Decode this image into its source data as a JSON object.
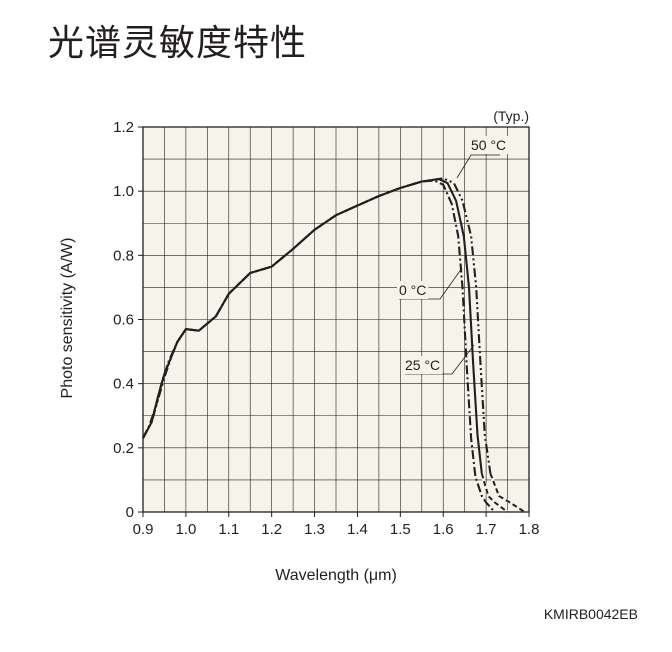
{
  "page": {
    "title": "光谱灵敏度特性",
    "figure_code": "KMIRB0042EB"
  },
  "chart_data": {
    "type": "line",
    "note": "(Typ.)",
    "xlabel": "Wavelength (μm)",
    "ylabel": "Photo sensitivity (A/W)",
    "xlim": [
      0.9,
      1.8
    ],
    "ylim": [
      0,
      1.2
    ],
    "x_ticks": [
      "0.9",
      "1.0",
      "1.1",
      "1.2",
      "1.3",
      "1.4",
      "1.5",
      "1.6",
      "1.7",
      "1.8"
    ],
    "y_ticks": [
      "0",
      "0.2",
      "0.4",
      "0.6",
      "0.8",
      "1.0",
      "1.2"
    ],
    "grid": true,
    "background": "#f4f4ea",
    "series": [
      {
        "name": "0 °C",
        "style": "dash-dot",
        "points": [
          [
            0.9,
            0.23
          ],
          [
            0.915,
            0.27
          ],
          [
            0.93,
            0.33
          ],
          [
            0.945,
            0.41
          ],
          [
            0.96,
            0.47
          ],
          [
            0.98,
            0.53
          ],
          [
            1.0,
            0.57
          ],
          [
            1.03,
            0.565
          ],
          [
            1.07,
            0.61
          ],
          [
            1.1,
            0.68
          ],
          [
            1.15,
            0.745
          ],
          [
            1.2,
            0.765
          ],
          [
            1.25,
            0.82
          ],
          [
            1.3,
            0.88
          ],
          [
            1.35,
            0.925
          ],
          [
            1.4,
            0.955
          ],
          [
            1.45,
            0.985
          ],
          [
            1.5,
            1.01
          ],
          [
            1.55,
            1.03
          ],
          [
            1.58,
            1.033
          ],
          [
            1.6,
            1.02
          ],
          [
            1.62,
            0.96
          ],
          [
            1.635,
            0.86
          ],
          [
            1.645,
            0.7
          ],
          [
            1.655,
            0.45
          ],
          [
            1.665,
            0.23
          ],
          [
            1.675,
            0.11
          ],
          [
            1.69,
            0.05
          ],
          [
            1.7,
            0.03
          ],
          [
            1.72,
            0.0
          ]
        ]
      },
      {
        "name": "25 °C",
        "style": "solid",
        "points": [
          [
            0.9,
            0.23
          ],
          [
            0.92,
            0.28
          ],
          [
            0.935,
            0.36
          ],
          [
            0.95,
            0.43
          ],
          [
            0.965,
            0.48
          ],
          [
            0.98,
            0.53
          ],
          [
            1.0,
            0.57
          ],
          [
            1.03,
            0.565
          ],
          [
            1.07,
            0.61
          ],
          [
            1.1,
            0.68
          ],
          [
            1.15,
            0.745
          ],
          [
            1.2,
            0.765
          ],
          [
            1.25,
            0.82
          ],
          [
            1.3,
            0.88
          ],
          [
            1.35,
            0.925
          ],
          [
            1.4,
            0.955
          ],
          [
            1.45,
            0.985
          ],
          [
            1.5,
            1.01
          ],
          [
            1.55,
            1.03
          ],
          [
            1.59,
            1.038
          ],
          [
            1.61,
            1.025
          ],
          [
            1.63,
            0.97
          ],
          [
            1.648,
            0.86
          ],
          [
            1.66,
            0.7
          ],
          [
            1.67,
            0.46
          ],
          [
            1.68,
            0.24
          ],
          [
            1.69,
            0.12
          ],
          [
            1.705,
            0.05
          ],
          [
            1.72,
            0.03
          ],
          [
            1.75,
            0.0
          ]
        ]
      },
      {
        "name": "50 °C",
        "style": "dash-dot-dot",
        "points": [
          [
            0.9,
            0.23
          ],
          [
            0.92,
            0.28
          ],
          [
            0.935,
            0.35
          ],
          [
            0.95,
            0.42
          ],
          [
            0.965,
            0.48
          ],
          [
            0.98,
            0.53
          ],
          [
            1.0,
            0.57
          ],
          [
            1.03,
            0.565
          ],
          [
            1.07,
            0.61
          ],
          [
            1.1,
            0.68
          ],
          [
            1.15,
            0.745
          ],
          [
            1.2,
            0.765
          ],
          [
            1.25,
            0.82
          ],
          [
            1.3,
            0.88
          ],
          [
            1.35,
            0.925
          ],
          [
            1.4,
            0.955
          ],
          [
            1.45,
            0.985
          ],
          [
            1.5,
            1.01
          ],
          [
            1.55,
            1.03
          ],
          [
            1.6,
            1.04
          ],
          [
            1.625,
            1.025
          ],
          [
            1.645,
            0.97
          ],
          [
            1.665,
            0.86
          ],
          [
            1.677,
            0.7
          ],
          [
            1.687,
            0.46
          ],
          [
            1.697,
            0.24
          ],
          [
            1.71,
            0.12
          ],
          [
            1.73,
            0.05
          ],
          [
            1.755,
            0.03
          ],
          [
            1.79,
            0.0
          ]
        ]
      }
    ]
  }
}
